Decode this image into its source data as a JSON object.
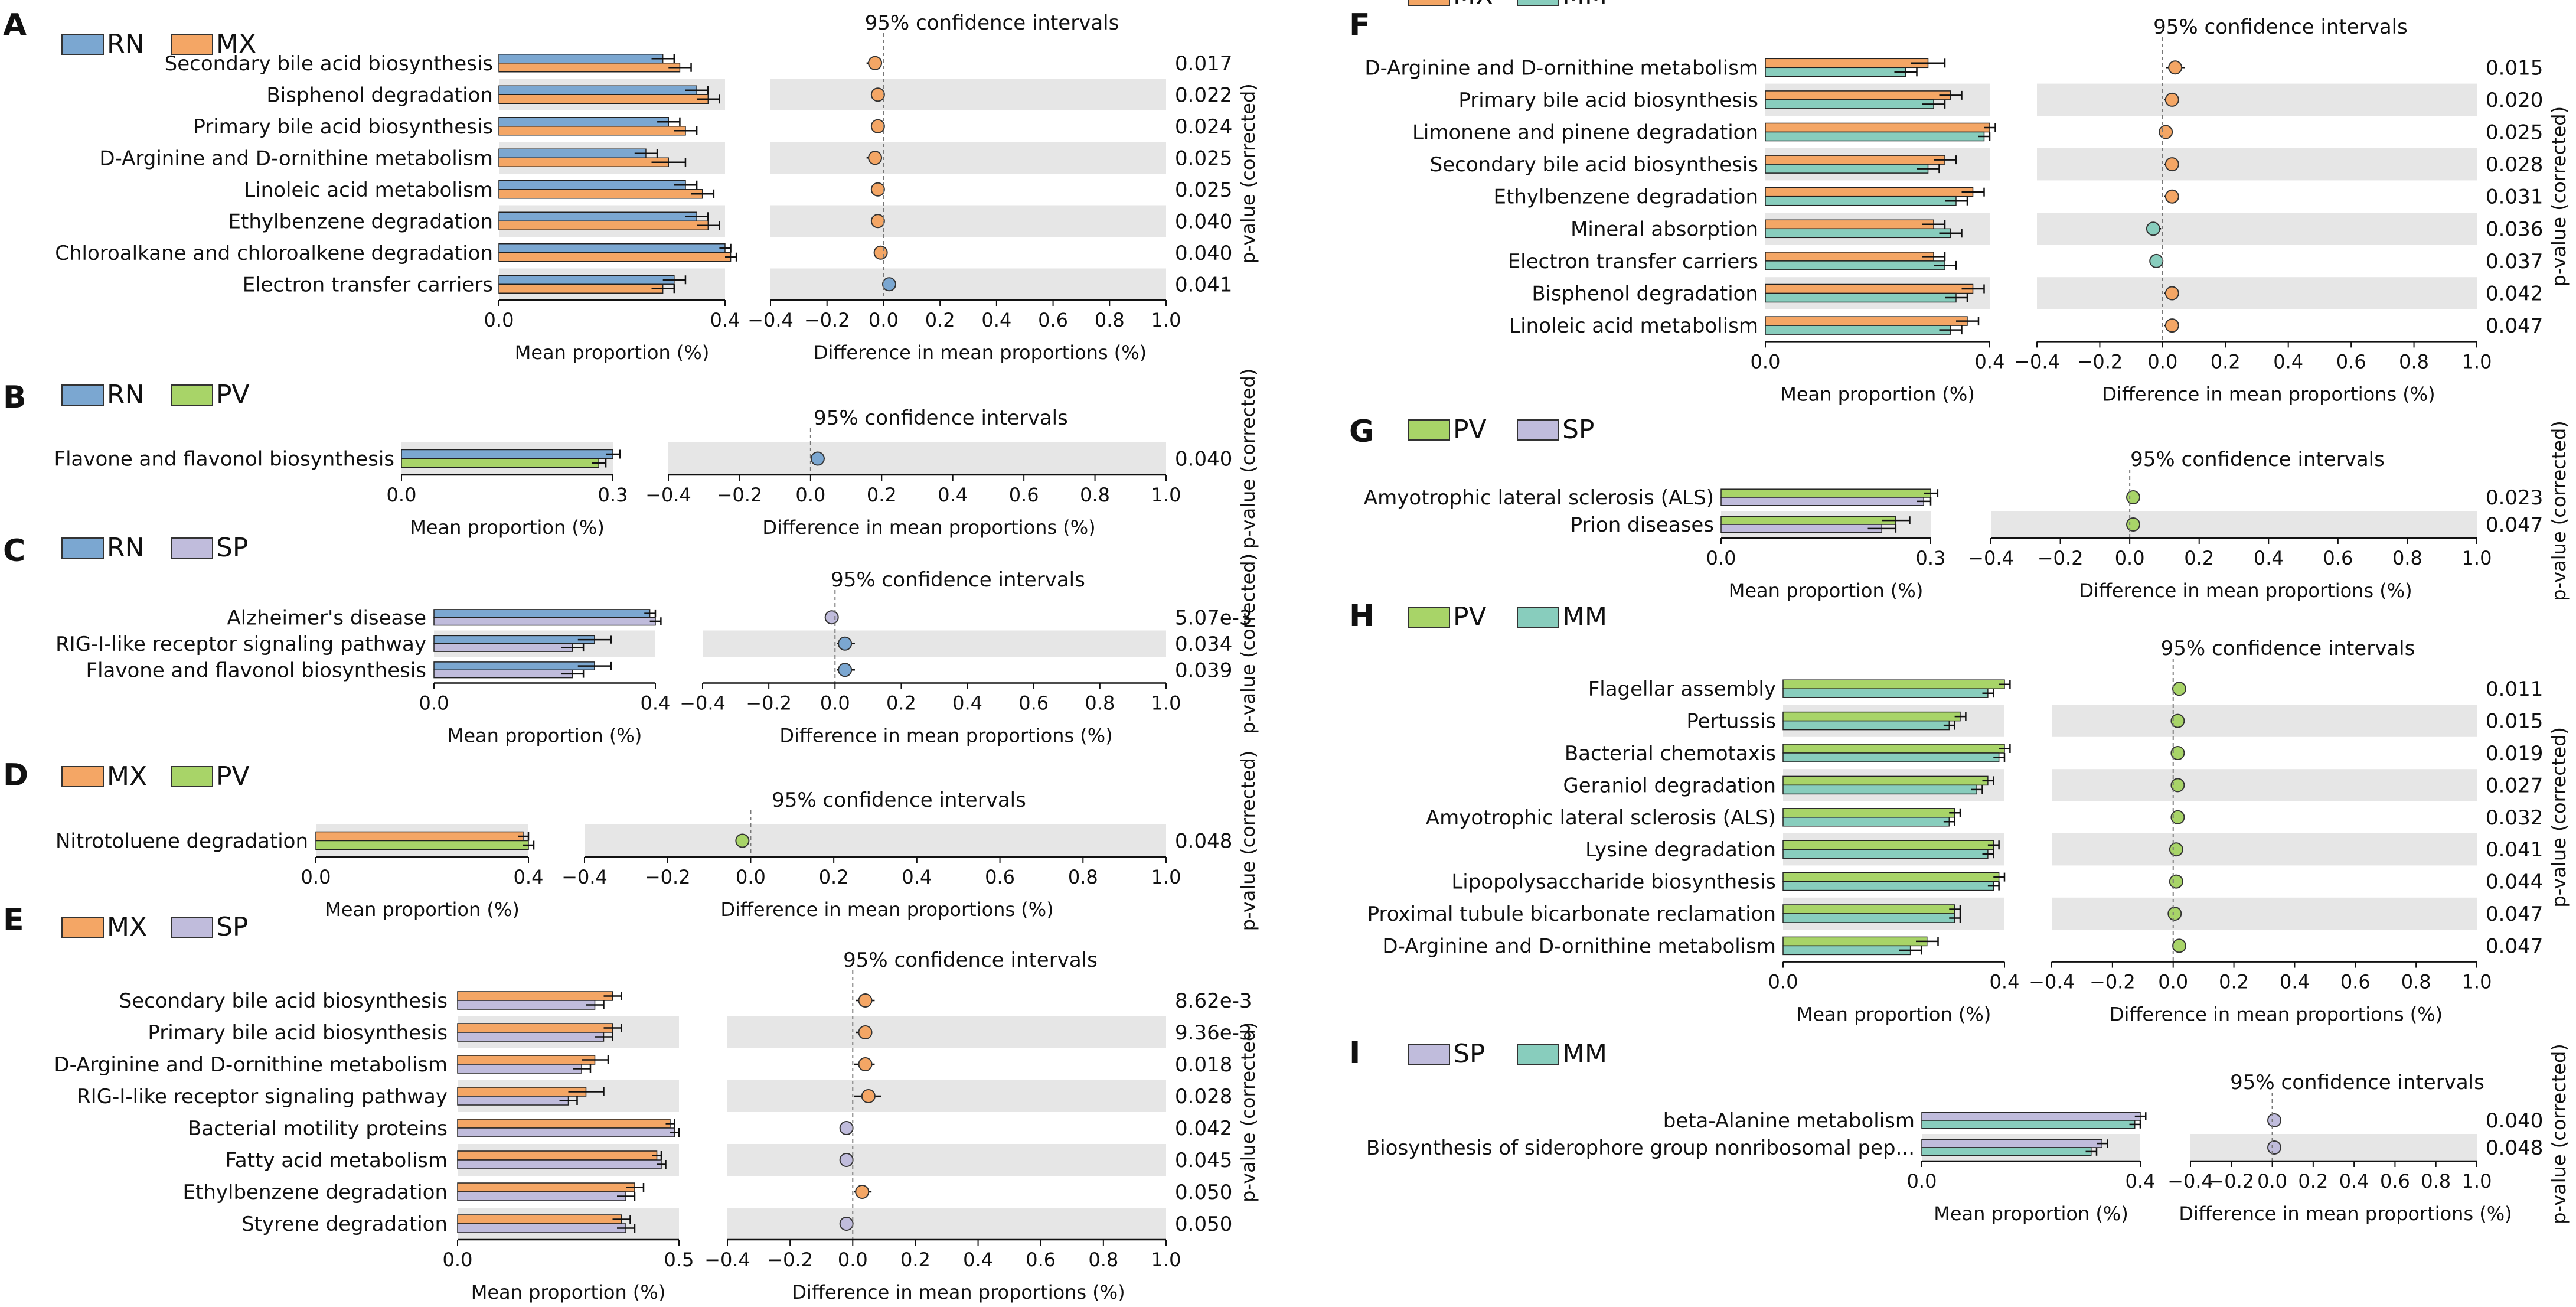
{
  "figure": {
    "type": "stamp-extended-error-bar",
    "ci_title": "95% confidence intervals",
    "xlabel_left": "Mean proportion (%)",
    "xlabel_right": "Difference in mean proportions (%)",
    "pvalue_label": "p-value (corrected)",
    "group_colors": {
      "RN": "#7ba7d1",
      "MX": "#f4a665",
      "PV": "#a8d468",
      "SP": "#c0bcdc",
      "MM": "#88cdbd"
    }
  },
  "chart_data": [
    {
      "panel": "A",
      "type": "bar",
      "groups": [
        "RN",
        "MX"
      ],
      "left_xlim": [
        0,
        0.4
      ],
      "left_ticks": [
        "0.0",
        "0.4"
      ],
      "left_tick_values": [
        0,
        0.4
      ],
      "right_xlim": [
        -0.4,
        1.0
      ],
      "right_ticks": [
        "−0.4",
        "−0.2",
        "0.0",
        "0.2",
        "0.4",
        "0.6",
        "0.8",
        "1.0"
      ],
      "right_tick_values": [
        -0.4,
        -0.2,
        0,
        0.2,
        0.4,
        0.6,
        0.8,
        1.0
      ],
      "categories": [
        "Secondary bile acid biosynthesis",
        "Bisphenol degradation",
        "Primary bile acid biosynthesis",
        "D-Arginine and D-ornithine metabolism",
        "Linoleic acid metabolism",
        "Ethylbenzene degradation",
        "Chloroalkane and chloroalkene degradation",
        "Electron transfer carriers"
      ],
      "series": [
        {
          "name": "RN",
          "values": [
            0.29,
            0.35,
            0.3,
            0.26,
            0.33,
            0.35,
            0.4,
            0.31
          ],
          "err": [
            0.02,
            0.02,
            0.02,
            0.02,
            0.02,
            0.02,
            0.01,
            0.02
          ]
        },
        {
          "name": "MX",
          "values": [
            0.32,
            0.37,
            0.33,
            0.3,
            0.36,
            0.37,
            0.41,
            0.29
          ],
          "err": [
            0.02,
            0.02,
            0.02,
            0.03,
            0.02,
            0.02,
            0.01,
            0.02
          ]
        }
      ],
      "diff": [
        -0.03,
        -0.02,
        -0.02,
        -0.03,
        -0.02,
        -0.02,
        -0.01,
        0.02
      ],
      "diff_ci": [
        [
          -0.06,
          -0.005
        ],
        [
          -0.04,
          -0.005
        ],
        [
          -0.04,
          -0.005
        ],
        [
          -0.06,
          -0.005
        ],
        [
          -0.04,
          -0.005
        ],
        [
          -0.04,
          -0.005
        ],
        [
          -0.02,
          -0.002
        ],
        [
          0.004,
          0.04
        ]
      ],
      "dot_colors": [
        "#f4a665",
        "#f4a665",
        "#f4a665",
        "#f4a665",
        "#f4a665",
        "#f4a665",
        "#f4a665",
        "#7ba7d1"
      ],
      "pvalues": [
        "0.017",
        "0.022",
        "0.024",
        "0.025",
        "0.025",
        "0.040",
        "0.040",
        "0.041"
      ]
    },
    {
      "panel": "B",
      "type": "bar",
      "groups": [
        "RN",
        "PV"
      ],
      "left_xlim": [
        0,
        0.3
      ],
      "left_ticks": [
        "0.0",
        "0.3"
      ],
      "left_tick_values": [
        0,
        0.3
      ],
      "right_xlim": [
        -0.4,
        1.0
      ],
      "right_ticks": [
        "−0.4",
        "−0.2",
        "0.0",
        "0.2",
        "0.4",
        "0.6",
        "0.8",
        "1.0"
      ],
      "right_tick_values": [
        -0.4,
        -0.2,
        0,
        0.2,
        0.4,
        0.6,
        0.8,
        1.0
      ],
      "categories": [
        "Flavone and flavonol biosynthesis"
      ],
      "series": [
        {
          "name": "RN",
          "values": [
            0.3
          ],
          "err": [
            0.01
          ]
        },
        {
          "name": "PV",
          "values": [
            0.28
          ],
          "err": [
            0.01
          ]
        }
      ],
      "diff": [
        0.02
      ],
      "diff_ci": [
        [
          0.0,
          0.04
        ]
      ],
      "dot_colors": [
        "#7ba7d1"
      ],
      "pvalues": [
        "0.040"
      ]
    },
    {
      "panel": "C",
      "type": "bar",
      "groups": [
        "RN",
        "SP"
      ],
      "left_xlim": [
        0,
        0.4
      ],
      "left_ticks": [
        "0.0",
        "0.4"
      ],
      "left_tick_values": [
        0,
        0.4
      ],
      "right_xlim": [
        -0.4,
        1.0
      ],
      "right_ticks": [
        "−0.4",
        "−0.2",
        "0.0",
        "0.2",
        "0.4",
        "0.6",
        "0.8",
        "1.0"
      ],
      "right_tick_values": [
        -0.4,
        -0.2,
        0,
        0.2,
        0.4,
        0.6,
        0.8,
        1.0
      ],
      "categories": [
        "Alzheimer's disease",
        "RIG-I-like receptor signaling pathway",
        "Flavone and flavonol biosynthesis"
      ],
      "series": [
        {
          "name": "RN",
          "values": [
            0.39,
            0.29,
            0.29
          ],
          "err": [
            0.01,
            0.03,
            0.03
          ]
        },
        {
          "name": "SP",
          "values": [
            0.4,
            0.25,
            0.25
          ],
          "err": [
            0.01,
            0.02,
            0.02
          ]
        }
      ],
      "diff": [
        -0.01,
        0.03,
        0.03
      ],
      "diff_ci": [
        [
          -0.015,
          -0.003
        ],
        [
          0.005,
          0.06
        ],
        [
          0.005,
          0.06
        ]
      ],
      "dot_colors": [
        "#c0bcdc",
        "#7ba7d1",
        "#7ba7d1"
      ],
      "pvalues": [
        "5.07e-3",
        "0.034",
        "0.039"
      ]
    },
    {
      "panel": "D",
      "type": "bar",
      "groups": [
        "MX",
        "PV"
      ],
      "left_xlim": [
        0,
        0.4
      ],
      "left_ticks": [
        "0.0",
        "0.4"
      ],
      "left_tick_values": [
        0,
        0.4
      ],
      "right_xlim": [
        -0.4,
        1.0
      ],
      "right_ticks": [
        "−0.4",
        "−0.2",
        "0.0",
        "0.2",
        "0.4",
        "0.6",
        "0.8",
        "1.0"
      ],
      "right_tick_values": [
        -0.4,
        -0.2,
        0,
        0.2,
        0.4,
        0.6,
        0.8,
        1.0
      ],
      "categories": [
        "Nitrotoluene degradation"
      ],
      "series": [
        {
          "name": "MX",
          "values": [
            0.39
          ],
          "err": [
            0.01
          ]
        },
        {
          "name": "PV",
          "values": [
            0.4
          ],
          "err": [
            0.01
          ]
        }
      ],
      "diff": [
        -0.02
      ],
      "diff_ci": [
        [
          -0.03,
          -0.005
        ]
      ],
      "dot_colors": [
        "#a8d468"
      ],
      "pvalues": [
        "0.048"
      ]
    },
    {
      "panel": "E",
      "type": "bar",
      "groups": [
        "MX",
        "SP"
      ],
      "left_xlim": [
        0,
        0.5
      ],
      "left_ticks": [
        "0.0",
        "0.5"
      ],
      "left_tick_values": [
        0,
        0.5
      ],
      "right_xlim": [
        -0.4,
        1.0
      ],
      "right_ticks": [
        "−0.4",
        "−0.2",
        "0.0",
        "0.2",
        "0.4",
        "0.6",
        "0.8",
        "1.0"
      ],
      "right_tick_values": [
        -0.4,
        -0.2,
        0,
        0.2,
        0.4,
        0.6,
        0.8,
        1.0
      ],
      "categories": [
        "Secondary bile acid biosynthesis",
        "Primary bile acid biosynthesis",
        "D-Arginine and D-ornithine metabolism",
        "RIG-I-like receptor signaling pathway",
        "Bacterial motility proteins",
        "Fatty acid metabolism",
        "Ethylbenzene degradation",
        "Styrene degradation"
      ],
      "series": [
        {
          "name": "MX",
          "values": [
            0.35,
            0.35,
            0.31,
            0.29,
            0.48,
            0.45,
            0.4,
            0.37
          ],
          "err": [
            0.02,
            0.02,
            0.03,
            0.04,
            0.01,
            0.01,
            0.02,
            0.02
          ]
        },
        {
          "name": "SP",
          "values": [
            0.31,
            0.33,
            0.28,
            0.25,
            0.49,
            0.46,
            0.38,
            0.38
          ],
          "err": [
            0.02,
            0.02,
            0.02,
            0.02,
            0.01,
            0.01,
            0.02,
            0.02
          ]
        }
      ],
      "diff": [
        0.04,
        0.04,
        0.04,
        0.05,
        -0.02,
        -0.02,
        0.03,
        -0.02
      ],
      "diff_ci": [
        [
          0.01,
          0.07
        ],
        [
          0.01,
          0.06
        ],
        [
          0.005,
          0.07
        ],
        [
          0.005,
          0.09
        ],
        [
          -0.03,
          -0.003
        ],
        [
          -0.035,
          -0.002
        ],
        [
          0.005,
          0.06
        ],
        [
          -0.03,
          -0.002
        ]
      ],
      "dot_colors": [
        "#f4a665",
        "#f4a665",
        "#f4a665",
        "#f4a665",
        "#c0bcdc",
        "#c0bcdc",
        "#f4a665",
        "#c0bcdc"
      ],
      "pvalues": [
        "8.62e-3",
        "9.36e-3",
        "0.018",
        "0.028",
        "0.042",
        "0.045",
        "0.050",
        "0.050"
      ]
    },
    {
      "panel": "F",
      "type": "bar",
      "groups": [
        "MX",
        "MM"
      ],
      "left_xlim": [
        0,
        0.4
      ],
      "left_ticks": [
        "0.0",
        "0.4"
      ],
      "left_tick_values": [
        0,
        0.4
      ],
      "right_xlim": [
        -0.4,
        1.0
      ],
      "right_ticks": [
        "−0.4",
        "−0.2",
        "0.0",
        "0.2",
        "0.4",
        "0.6",
        "0.8",
        "1.0"
      ],
      "right_tick_values": [
        -0.4,
        -0.2,
        0,
        0.2,
        0.4,
        0.6,
        0.8,
        1.0
      ],
      "categories": [
        "D-Arginine and D-ornithine metabolism",
        "Primary bile acid biosynthesis",
        "Limonene and pinene degradation",
        "Secondary bile acid biosynthesis",
        "Ethylbenzene degradation",
        "Mineral absorption",
        "Electron transfer carriers",
        "Bisphenol degradation",
        "Linoleic acid metabolism"
      ],
      "series": [
        {
          "name": "MX",
          "values": [
            0.29,
            0.33,
            0.4,
            0.32,
            0.37,
            0.3,
            0.3,
            0.37,
            0.36
          ],
          "err": [
            0.03,
            0.02,
            0.01,
            0.02,
            0.02,
            0.02,
            0.02,
            0.02,
            0.02
          ]
        },
        {
          "name": "MM",
          "values": [
            0.25,
            0.3,
            0.39,
            0.29,
            0.34,
            0.33,
            0.32,
            0.34,
            0.33
          ],
          "err": [
            0.02,
            0.02,
            0.01,
            0.02,
            0.02,
            0.02,
            0.02,
            0.02,
            0.02
          ]
        }
      ],
      "diff": [
        0.04,
        0.03,
        0.01,
        0.03,
        0.03,
        -0.03,
        -0.02,
        0.03,
        0.03
      ],
      "diff_ci": [
        [
          0.01,
          0.07
        ],
        [
          0.005,
          0.05
        ],
        [
          0.002,
          0.03
        ],
        [
          0.005,
          0.05
        ],
        [
          0.005,
          0.05
        ],
        [
          -0.05,
          -0.005
        ],
        [
          -0.04,
          -0.005
        ],
        [
          0.005,
          0.05
        ],
        [
          0.005,
          0.05
        ]
      ],
      "dot_colors": [
        "#f4a665",
        "#f4a665",
        "#f4a665",
        "#f4a665",
        "#f4a665",
        "#88cdbd",
        "#88cdbd",
        "#f4a665",
        "#f4a665"
      ],
      "pvalues": [
        "0.015",
        "0.020",
        "0.025",
        "0.028",
        "0.031",
        "0.036",
        "0.037",
        "0.042",
        "0.047"
      ]
    },
    {
      "panel": "G",
      "type": "bar",
      "groups": [
        "PV",
        "SP"
      ],
      "left_xlim": [
        0,
        0.3
      ],
      "left_ticks": [
        "0.0",
        "0.3"
      ],
      "left_tick_values": [
        0,
        0.3
      ],
      "right_xlim": [
        -0.4,
        1.0
      ],
      "right_ticks": [
        "−0.4",
        "−0.2",
        "0.0",
        "0.2",
        "0.4",
        "0.6",
        "0.8",
        "1.0"
      ],
      "right_tick_values": [
        -0.4,
        -0.2,
        0,
        0.2,
        0.4,
        0.6,
        0.8,
        1.0
      ],
      "categories": [
        "Amyotrophic lateral sclerosis (ALS)",
        "Prion diseases"
      ],
      "series": [
        {
          "name": "PV",
          "values": [
            0.3,
            0.25
          ],
          "err": [
            0.01,
            0.02
          ]
        },
        {
          "name": "SP",
          "values": [
            0.29,
            0.23
          ],
          "err": [
            0.01,
            0.02
          ]
        }
      ],
      "diff": [
        0.01,
        0.01
      ],
      "diff_ci": [
        [
          0.002,
          0.02
        ],
        [
          0.002,
          0.025
        ]
      ],
      "dot_colors": [
        "#a8d468",
        "#a8d468"
      ],
      "pvalues": [
        "0.023",
        "0.047"
      ]
    },
    {
      "panel": "H",
      "type": "bar",
      "groups": [
        "PV",
        "MM"
      ],
      "left_xlim": [
        0,
        0.4
      ],
      "left_ticks": [
        "0.0",
        "0.4"
      ],
      "left_tick_values": [
        0,
        0.4
      ],
      "right_xlim": [
        -0.4,
        1.0
      ],
      "right_ticks": [
        "−0.4",
        "−0.2",
        "0.0",
        "0.2",
        "0.4",
        "0.6",
        "0.8",
        "1.0"
      ],
      "right_tick_values": [
        -0.4,
        -0.2,
        0,
        0.2,
        0.4,
        0.6,
        0.8,
        1.0
      ],
      "categories": [
        "Flagellar assembly",
        "Pertussis",
        "Bacterial chemotaxis",
        "Geraniol degradation",
        "Amyotrophic lateral sclerosis (ALS)",
        "Lysine degradation",
        "Lipopolysaccharide biosynthesis",
        "Proximal tubule bicarbonate reclamation",
        "D-Arginine and D-ornithine metabolism"
      ],
      "series": [
        {
          "name": "PV",
          "values": [
            0.4,
            0.32,
            0.4,
            0.37,
            0.31,
            0.38,
            0.39,
            0.31,
            0.26
          ],
          "err": [
            0.01,
            0.01,
            0.01,
            0.01,
            0.01,
            0.01,
            0.01,
            0.01,
            0.02
          ]
        },
        {
          "name": "MM",
          "values": [
            0.37,
            0.3,
            0.39,
            0.35,
            0.3,
            0.37,
            0.38,
            0.31,
            0.23
          ],
          "err": [
            0.01,
            0.01,
            0.01,
            0.01,
            0.01,
            0.01,
            0.01,
            0.01,
            0.02
          ]
        }
      ],
      "diff": [
        0.02,
        0.015,
        0.015,
        0.015,
        0.015,
        0.01,
        0.01,
        0.005,
        0.02
      ],
      "diff_ci": [
        [
          0.005,
          0.04
        ],
        [
          0.005,
          0.025
        ],
        [
          0.005,
          0.025
        ],
        [
          0.005,
          0.025
        ],
        [
          0.005,
          0.025
        ],
        [
          0.003,
          0.02
        ],
        [
          0.003,
          0.02
        ],
        [
          0.001,
          0.01
        ],
        [
          0.005,
          0.035
        ]
      ],
      "dot_colors": [
        "#a8d468",
        "#a8d468",
        "#a8d468",
        "#a8d468",
        "#a8d468",
        "#a8d468",
        "#a8d468",
        "#a8d468",
        "#a8d468"
      ],
      "pvalues": [
        "0.011",
        "0.015",
        "0.019",
        "0.027",
        "0.032",
        "0.041",
        "0.044",
        "0.047",
        "0.047"
      ]
    },
    {
      "panel": "I",
      "type": "bar",
      "groups": [
        "SP",
        "MM"
      ],
      "left_xlim": [
        0,
        0.4
      ],
      "left_ticks": [
        "0.0",
        "0.4"
      ],
      "left_tick_values": [
        0,
        0.4
      ],
      "right_xlim": [
        -0.4,
        1.0
      ],
      "right_ticks": [
        "−0.4",
        "−0.2",
        "0.0",
        "0.2",
        "0.4",
        "0.6",
        "0.8",
        "1.0"
      ],
      "right_tick_values": [
        -0.4,
        -0.2,
        0,
        0.2,
        0.4,
        0.6,
        0.8,
        1.0
      ],
      "categories": [
        "beta-Alanine metabolism",
        "Biosynthesis of siderophore group nonribosomal pep..."
      ],
      "series": [
        {
          "name": "SP",
          "values": [
            0.4,
            0.33
          ],
          "err": [
            0.01,
            0.01
          ]
        },
        {
          "name": "MM",
          "values": [
            0.39,
            0.31
          ],
          "err": [
            0.01,
            0.01
          ]
        }
      ],
      "diff": [
        0.01,
        0.01
      ],
      "diff_ci": [
        [
          0.002,
          0.02
        ],
        [
          0.002,
          0.02
        ]
      ],
      "dot_colors": [
        "#c0bcdc",
        "#c0bcdc"
      ],
      "pvalues": [
        "0.040",
        "0.048"
      ]
    }
  ]
}
